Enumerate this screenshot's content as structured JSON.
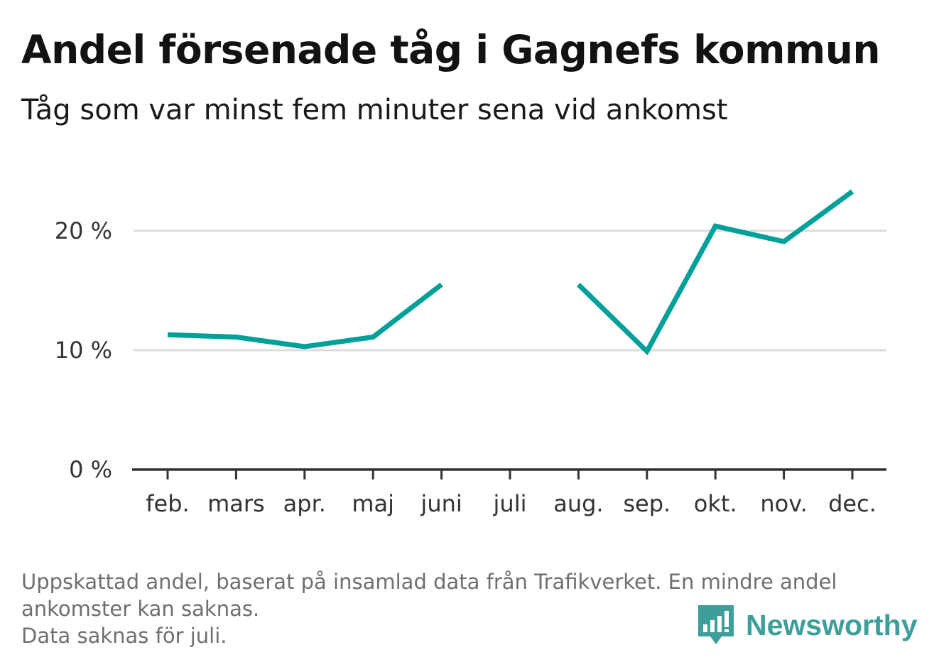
{
  "title": "Andel försenade tåg i Gagnefs kommun",
  "subtitle": "Tåg som var minst fem minuter sena vid ankomst",
  "notes": [
    "Uppskattad andel, baserat på insamlad data från Trafikverket. En mindre andel ankomster kan saknas.",
    "Data saknas för juli."
  ],
  "brand": {
    "name": "Newsworthy",
    "icon": "bar-chart-speech-bubble-icon",
    "color": "#3d9e9a"
  },
  "chart_data": {
    "type": "line",
    "categories": [
      "feb.",
      "mars",
      "apr.",
      "maj",
      "juni",
      "juli",
      "aug.",
      "sep.",
      "okt.",
      "nov.",
      "dec."
    ],
    "series": [
      {
        "values": [
          11.3,
          11.1,
          10.3,
          11.1,
          15.5,
          null,
          15.5,
          9.9,
          20.4,
          19.1,
          23.3
        ]
      }
    ],
    "ylim": [
      0,
      25
    ],
    "yticks": [
      0,
      10,
      20
    ],
    "ytick_labels": [
      "0 %",
      "10 %",
      "20 %"
    ],
    "grid": true,
    "line_color": "#00a09a",
    "grid_color": "#dddddd",
    "axis_color": "#333333"
  }
}
